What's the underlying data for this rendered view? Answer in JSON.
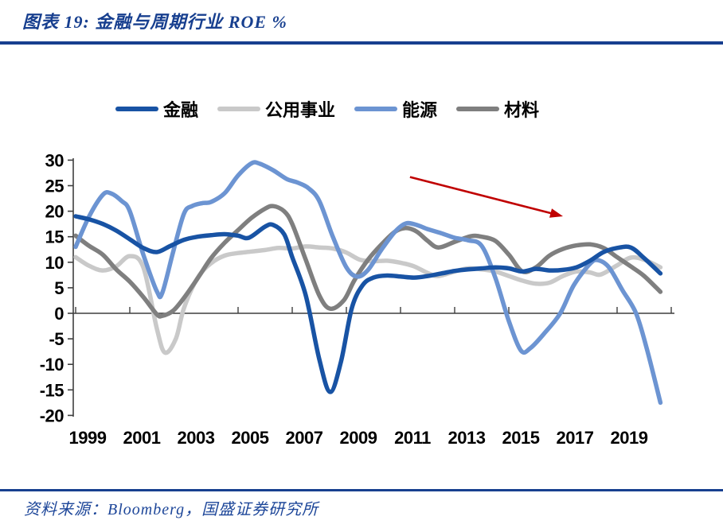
{
  "header": {
    "title": "图表 19: 金融与周期行业 ROE %"
  },
  "footer": {
    "source": "资料来源：Bloomberg，国盛证券研究所"
  },
  "colors": {
    "accent_blue": "#173F8F",
    "axis": "#3F3F3F",
    "arrow_red": "#C00000"
  },
  "chart_data": {
    "type": "line",
    "title": "金融与周期行业 ROE %",
    "xlabel": "",
    "ylabel": "ROE %",
    "ylim": [
      -20,
      30
    ],
    "ytick_step": 5,
    "y_ticks": [
      30,
      25,
      20,
      15,
      10,
      5,
      0,
      -5,
      -10,
      -15,
      -20
    ],
    "x_tick_labels": [
      "1999",
      "2001",
      "2003",
      "2005",
      "2007",
      "2009",
      "2011",
      "2013",
      "2015",
      "2017",
      "2019"
    ],
    "x_axis_years": [
      1999,
      2021.1
    ],
    "grid": false,
    "legend_position": "top",
    "legend": [
      "金融",
      "公用事业",
      "能源",
      "材料"
    ],
    "draw_order": [
      1,
      3,
      2,
      0
    ],
    "series": [
      {
        "name": "金融",
        "color": "#1853A4",
        "points": [
          [
            1999,
            19.0
          ],
          [
            1999.5,
            18.4
          ],
          [
            2000,
            17.5
          ],
          [
            2000.5,
            16.2
          ],
          [
            2001,
            14.5
          ],
          [
            2001.5,
            12.8
          ],
          [
            2002,
            12.0
          ],
          [
            2002.5,
            13.2
          ],
          [
            2003,
            14.4
          ],
          [
            2003.5,
            15.0
          ],
          [
            2004,
            15.3
          ],
          [
            2004.5,
            15.5
          ],
          [
            2005,
            15.2
          ],
          [
            2005.4,
            14.8
          ],
          [
            2006,
            17.0
          ],
          [
            2006.3,
            17.3
          ],
          [
            2006.7,
            15.5
          ],
          [
            2007,
            11.0
          ],
          [
            2007.5,
            3.5
          ],
          [
            2008,
            -9.0
          ],
          [
            2008.4,
            -15.4
          ],
          [
            2008.8,
            -9.5
          ],
          [
            2009.2,
            1.0
          ],
          [
            2009.6,
            5.5
          ],
          [
            2010,
            7.0
          ],
          [
            2010.5,
            7.4
          ],
          [
            2011,
            7.2
          ],
          [
            2011.5,
            7.0
          ],
          [
            2012,
            7.3
          ],
          [
            2012.5,
            7.8
          ],
          [
            2013,
            8.3
          ],
          [
            2013.5,
            8.6
          ],
          [
            2014,
            8.8
          ],
          [
            2014.5,
            9.0
          ],
          [
            2015,
            8.8
          ],
          [
            2015.5,
            8.2
          ],
          [
            2016,
            8.7
          ],
          [
            2016.5,
            8.4
          ],
          [
            2017,
            8.5
          ],
          [
            2017.5,
            9.0
          ],
          [
            2018,
            10.3
          ],
          [
            2018.5,
            12.0
          ],
          [
            2019,
            12.8
          ],
          [
            2019.5,
            12.9
          ],
          [
            2020,
            10.8
          ],
          [
            2020.6,
            7.8
          ]
        ]
      },
      {
        "name": "公用事业",
        "color": "#C9C9C9",
        "points": [
          [
            1999,
            11.0
          ],
          [
            1999.5,
            9.3
          ],
          [
            2000,
            8.4
          ],
          [
            2000.5,
            9.2
          ],
          [
            2001,
            11.2
          ],
          [
            2001.5,
            9.0
          ],
          [
            2002,
            -3.0
          ],
          [
            2002.3,
            -7.7
          ],
          [
            2002.7,
            -5.0
          ],
          [
            2003,
            1.0
          ],
          [
            2003.5,
            6.9
          ],
          [
            2004,
            9.8
          ],
          [
            2004.5,
            11.3
          ],
          [
            2005,
            11.8
          ],
          [
            2005.5,
            12.1
          ],
          [
            2006,
            12.4
          ],
          [
            2006.5,
            12.8
          ],
          [
            2007,
            12.7
          ],
          [
            2007.5,
            13.1
          ],
          [
            2008,
            12.9
          ],
          [
            2008.5,
            12.7
          ],
          [
            2009,
            11.9
          ],
          [
            2009.5,
            10.5
          ],
          [
            2010,
            10.2
          ],
          [
            2010.5,
            10.3
          ],
          [
            2011,
            9.9
          ],
          [
            2011.5,
            9.2
          ],
          [
            2012,
            7.9
          ],
          [
            2012.4,
            7.3
          ],
          [
            2013,
            8.2
          ],
          [
            2013.5,
            8.8
          ],
          [
            2014,
            8.6
          ],
          [
            2014.5,
            8.2
          ],
          [
            2015,
            7.3
          ],
          [
            2015.5,
            6.4
          ],
          [
            2016,
            5.8
          ],
          [
            2016.5,
            6.0
          ],
          [
            2017,
            7.3
          ],
          [
            2017.5,
            8.2
          ],
          [
            2018,
            8.0
          ],
          [
            2018.4,
            7.6
          ],
          [
            2019,
            9.4
          ],
          [
            2019.5,
            10.9
          ],
          [
            2020,
            10.5
          ],
          [
            2020.6,
            9.0
          ]
        ]
      },
      {
        "name": "能源",
        "color": "#6C94D2",
        "points": [
          [
            1999,
            13.0
          ],
          [
            1999.5,
            19.0
          ],
          [
            2000,
            23.2
          ],
          [
            2000.3,
            23.5
          ],
          [
            2000.7,
            22.0
          ],
          [
            2001,
            20.0
          ],
          [
            2001.5,
            11.5
          ],
          [
            2002,
            4.3
          ],
          [
            2002.2,
            4.0
          ],
          [
            2002.6,
            12.0
          ],
          [
            2003,
            19.5
          ],
          [
            2003.3,
            21.0
          ],
          [
            2003.7,
            21.6
          ],
          [
            2004,
            21.8
          ],
          [
            2004.5,
            23.5
          ],
          [
            2005,
            27.0
          ],
          [
            2005.5,
            29.4
          ],
          [
            2005.8,
            29.3
          ],
          [
            2006.3,
            28.0
          ],
          [
            2006.8,
            26.3
          ],
          [
            2007.2,
            25.6
          ],
          [
            2007.6,
            24.5
          ],
          [
            2008,
            22.0
          ],
          [
            2008.5,
            15.0
          ],
          [
            2009,
            9.0
          ],
          [
            2009.4,
            7.2
          ],
          [
            2009.8,
            8.5
          ],
          [
            2010.3,
            12.5
          ],
          [
            2010.8,
            16.0
          ],
          [
            2011.2,
            17.6
          ],
          [
            2011.6,
            17.3
          ],
          [
            2012,
            16.5
          ],
          [
            2012.5,
            15.7
          ],
          [
            2013,
            14.8
          ],
          [
            2013.5,
            14.3
          ],
          [
            2014,
            13.2
          ],
          [
            2014.5,
            7.0
          ],
          [
            2015,
            -1.5
          ],
          [
            2015.45,
            -7.3
          ],
          [
            2015.8,
            -6.8
          ],
          [
            2016.3,
            -4.0
          ],
          [
            2016.9,
            0.0
          ],
          [
            2017.4,
            5.5
          ],
          [
            2018,
            9.7
          ],
          [
            2018.3,
            10.4
          ],
          [
            2018.7,
            9.0
          ],
          [
            2019.2,
            4.5
          ],
          [
            2019.7,
            0.0
          ],
          [
            2020.1,
            -7.0
          ],
          [
            2020.6,
            -17.5
          ]
        ]
      },
      {
        "name": "材料",
        "color": "#7F7F7F",
        "points": [
          [
            1999,
            15.2
          ],
          [
            1999.5,
            13.2
          ],
          [
            2000,
            11.5
          ],
          [
            2000.5,
            8.6
          ],
          [
            2001,
            6.2
          ],
          [
            2001.5,
            3.2
          ],
          [
            2002,
            -0.2
          ],
          [
            2002.2,
            -0.5
          ],
          [
            2002.6,
            0.5
          ],
          [
            2003,
            3.0
          ],
          [
            2003.5,
            6.8
          ],
          [
            2004,
            10.8
          ],
          [
            2004.5,
            13.8
          ],
          [
            2005,
            16.3
          ],
          [
            2005.5,
            18.7
          ],
          [
            2006,
            20.5
          ],
          [
            2006.3,
            21.0
          ],
          [
            2006.7,
            20.0
          ],
          [
            2007,
            17.5
          ],
          [
            2007.5,
            10.5
          ],
          [
            2008,
            3.5
          ],
          [
            2008.4,
            0.9
          ],
          [
            2008.9,
            2.5
          ],
          [
            2009.3,
            6.5
          ],
          [
            2009.8,
            10.5
          ],
          [
            2010.3,
            13.5
          ],
          [
            2010.8,
            16.0
          ],
          [
            2011.2,
            16.7
          ],
          [
            2011.6,
            16.0
          ],
          [
            2012,
            14.2
          ],
          [
            2012.4,
            12.9
          ],
          [
            2013,
            14.0
          ],
          [
            2013.6,
            15.1
          ],
          [
            2014,
            15.0
          ],
          [
            2014.5,
            14.2
          ],
          [
            2015,
            11.5
          ],
          [
            2015.5,
            8.2
          ],
          [
            2016,
            9.0
          ],
          [
            2016.5,
            11.3
          ],
          [
            2017,
            12.6
          ],
          [
            2017.5,
            13.3
          ],
          [
            2018,
            13.5
          ],
          [
            2018.5,
            12.8
          ],
          [
            2019,
            11.0
          ],
          [
            2019.5,
            9.2
          ],
          [
            2020,
            7.3
          ],
          [
            2020.6,
            4.2
          ]
        ]
      }
    ],
    "annotation_arrow": {
      "x1": 2011.35,
      "y1": 26.7,
      "x2": 2017.0,
      "y2": 19.0,
      "color": "#C00000"
    }
  }
}
